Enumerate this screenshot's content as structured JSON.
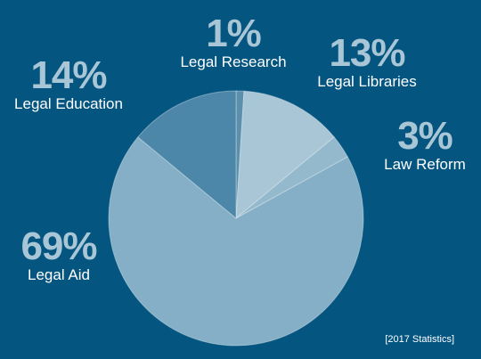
{
  "chart_data": {
    "type": "pie",
    "slices": [
      {
        "label": "Legal Research",
        "value": 1,
        "value_label": "1%",
        "color": "#5b8fad"
      },
      {
        "label": "Legal Libraries",
        "value": 13,
        "value_label": "13%",
        "color": "#a9c6d6"
      },
      {
        "label": "Law Reform",
        "value": 3,
        "value_label": "3%",
        "color": "#94b8cc"
      },
      {
        "label": "Legal Aid",
        "value": 69,
        "value_label": "69%",
        "color": "#85afc6"
      },
      {
        "label": "Legal Education",
        "value": 14,
        "value_label": "14%",
        "color": "#4c87a9"
      }
    ],
    "legend": "none"
  },
  "footnote": "[2017 Statistics]",
  "colors": {
    "background": "#045580",
    "percent_text": "#a9c6d6",
    "label_text": "#ffffff",
    "slice_border": "#ffffff"
  }
}
